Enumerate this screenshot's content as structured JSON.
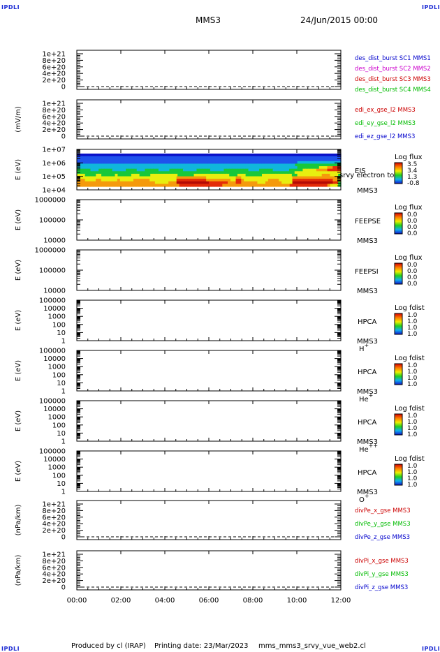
{
  "header": {
    "mission": "MMS3",
    "datetime": "24/Jun/2015 00:00",
    "logo": "IPDLI"
  },
  "footer": {
    "produced_by": "Produced by cl (IRAP)",
    "printing_date": "Printing date: 23/Mar/2023",
    "file_name": "mms_mms3_srvy_vue_web2.cl"
  },
  "colors": {
    "mms1": "#0000cc",
    "mms2": "#cc00cc",
    "mms3": "#cc0000",
    "mms4": "#00bb00",
    "x": "#cc0000",
    "y": "#00bb00",
    "z": "#0000cc"
  },
  "chart_data": [
    {
      "type": "line",
      "panel": "des-dist",
      "ylabel": "",
      "yticks": [
        "1e+21",
        "8e+20",
        "6e+20",
        "4e+20",
        "2e+20",
        "0"
      ],
      "ylim": [
        0,
        1e+21
      ],
      "dashed_zero": true,
      "legend": [
        {
          "text": "des_dist_burst SC1 MMS1",
          "color": "#0000cc"
        },
        {
          "text": "des_dist_burst SC2 MMS2",
          "color": "#cc00cc"
        },
        {
          "text": "des_dist_burst SC3 MMS3",
          "color": "#cc0000"
        },
        {
          "text": "des_dist_burst SC4 MMS4",
          "color": "#00bb00"
        }
      ]
    },
    {
      "type": "line",
      "panel": "edi",
      "ylabel": "(mV/m)",
      "yticks": [
        "1e+21",
        "8e+20",
        "6e+20",
        "4e+20",
        "2e+20",
        "0"
      ],
      "ylim": [
        0,
        1e+21
      ],
      "dashed_zero": true,
      "legend": [
        {
          "text": "edi_ex_gse_l2 MMS3",
          "color": "#cc0000"
        },
        {
          "text": "edi_ey_gse_l2 MMS3",
          "color": "#00bb00"
        },
        {
          "text": "edi_ez_gse_l2 MMS3",
          "color": "#0000cc"
        }
      ]
    },
    {
      "type": "heatmap",
      "panel": "eis",
      "ylabel": "E (eV)",
      "yticks": [
        "1e+07",
        "1e+06",
        "1e+05",
        "1e+04"
      ],
      "ylim": [
        10000.0,
        10000000.0
      ],
      "yscale": "log",
      "instrument": "EIS",
      "spacecraft": "MMS3",
      "overlay_text": "srvy electron to",
      "colorbar": {
        "title": "Log flux",
        "values": [
          "3.5",
          "3.4",
          "1.3",
          "-0.8"
        ]
      },
      "rows_top_to_bottom": [
        "BBBBBBBBBBBBBBBBBBBBBBBBBBBBBBBBBBBBBBBBBBBBBBBBBBBBBBBBBBBBBBBBBBBBBBBBBBBBBBBBBBBBBBBBBBBBBBBB",
        "bbbbbbbbbbbbbbbbbbbbbbbbbbbbbbbbbbbbbbbbbbbbbbbbbbbbbbbbbbbbbbbbbbbbbbbbbbbbbbbbbbbbbbbbbbbbbbbb",
        "bbbbbbbbbbbbbbbbbbbbbbbbbbbbbbbbbbbbbbbbbbbbbbbbbbbbbbbbbbbbbbbbbbbbbbbbbbbbbbbbbbbbbbbbbbbbbbbb",
        "bbbbbbbbbbbbbbbbbbbbbbbbbbbbbbbbbbbbbbbbbbbbbbbbbbbbbbbbbbbbbbbbbbbbbbbbbbbbbbbbbcccccccccccccccc",
        "cccccccccccccccccccccccccccccccccccccccccccccccccccccccccccccccccccccccccccccccccggggggggggggggggg",
        "cccccccccccccccccccccccccccccccccccccccccccccccccccccccccccccccccccccccccccccccccggggggggyyyoorrr",
        "gggggcccgggggcccccggggcccgggggccccgggggcccccgggggcccccgggggggggccccgggggccccccgggggyyyyyoooorrrrr",
        "ggggggggggggggggggggggggggggggggggggggggggggggggggggggggggggggggggggggggggggggggyyyyyyyyyyyyyyyyy",
        "yyyggggyygggggygggggyyyggggyyyyyyyyyyggggggyyyyyyyyyyyyygggyyyggggggyyyyyyyyyyyggyyyyyyyyyoooyyyg",
        "yyyyyyyyyyyyyyyyyyyyyyyyyyyyyyyyyyyyyoooooooooooyyyyyyyyyyyooyyyyyyyyyyyyyyyyyyyoooooooooooooooooy",
        "oooyyyyooyyyyyyoyyyyyooooooyyyyyyyyyyrrrrrrrrrrroooooooooyyrroyyyyyyyyyooooyyyyyrrrrrrrrrrrrrrrooy",
        "oooooooooooooooooooooooooooooyyyyyoooRRRRRRRRRRRRrrrrrrrooorrooooooyyyooooooyyyyRRRRRRRRRRRRRRRrrg",
        "oooooooooooooooooooooooooooooooooooooorrrrrrrrrrrrrrrrooooooooooooooooooooooooorrrrrrrrrrrrrroyyyg"
      ]
    },
    {
      "type": "heatmap",
      "panel": "feepse",
      "ylabel": "E (eV)",
      "yticks": [
        "1000000",
        "100000",
        "10000"
      ],
      "ylim": [
        10000,
        1000000
      ],
      "yscale": "log",
      "instrument": "FEEPSE",
      "spacecraft": "MMS3",
      "colorbar": {
        "title": "Log flux",
        "values": [
          "0.0",
          "0.0",
          "0.0",
          "0.0"
        ]
      }
    },
    {
      "type": "heatmap",
      "panel": "feepsi",
      "ylabel": "E (eV)",
      "yticks": [
        "1000000",
        "100000",
        "10000"
      ],
      "ylim": [
        10000,
        1000000
      ],
      "yscale": "log",
      "instrument": "FEEPSI",
      "spacecraft": "MMS3",
      "colorbar": {
        "title": "Log flux",
        "values": [
          "0.0",
          "0.0",
          "0.0",
          "0.0"
        ]
      }
    },
    {
      "type": "heatmap",
      "panel": "hpca-h",
      "ylabel": "E (eV)",
      "yticks": [
        "100000",
        "10000",
        "1000",
        "100",
        "10",
        "1"
      ],
      "ylim": [
        1,
        100000
      ],
      "yscale": "log",
      "instrument": "HPCA",
      "spacecraft": "MMS3",
      "species": "H",
      "charge": "+",
      "colorbar": {
        "title": "Log fdist",
        "values": [
          "1.0",
          "1.0",
          "1.0",
          "1.0"
        ]
      }
    },
    {
      "type": "heatmap",
      "panel": "hpca-he",
      "ylabel": "E (eV)",
      "yticks": [
        "100000",
        "10000",
        "1000",
        "100",
        "10",
        "1"
      ],
      "ylim": [
        1,
        100000
      ],
      "yscale": "log",
      "instrument": "HPCA",
      "spacecraft": "MMS3",
      "species": "He",
      "charge": "+",
      "colorbar": {
        "title": "Log fdist",
        "values": [
          "1.0",
          "1.0",
          "1.0",
          "1.0"
        ]
      }
    },
    {
      "type": "heatmap",
      "panel": "hpca-he2",
      "ylabel": "E (eV)",
      "yticks": [
        "100000",
        "10000",
        "1000",
        "100",
        "10",
        "1"
      ],
      "ylim": [
        1,
        100000
      ],
      "yscale": "log",
      "instrument": "HPCA",
      "spacecraft": "MMS3",
      "species": "He",
      "charge": "++",
      "colorbar": {
        "title": "Log fdist",
        "values": [
          "1.0",
          "1.0",
          "1.0",
          "1.0"
        ]
      }
    },
    {
      "type": "heatmap",
      "panel": "hpca-o",
      "ylabel": "E (eV)",
      "yticks": [
        "100000",
        "10000",
        "1000",
        "100",
        "10",
        "1"
      ],
      "ylim": [
        1,
        100000
      ],
      "yscale": "log",
      "instrument": "HPCA",
      "spacecraft": "MMS3",
      "species": "O",
      "charge": "+",
      "colorbar": {
        "title": "Log fdist",
        "values": [
          "1.0",
          "1.0",
          "1.0",
          "1.0"
        ]
      }
    },
    {
      "type": "line",
      "panel": "divpe",
      "ylabel": "(nPa/km)",
      "yticks": [
        "1e+21",
        "8e+20",
        "6e+20",
        "4e+20",
        "2e+20",
        "0"
      ],
      "ylim": [
        0,
        1e+21
      ],
      "dashed_zero": true,
      "legend": [
        {
          "text": "divPe_x_gse MMS3",
          "color": "#cc0000"
        },
        {
          "text": "divPe_y_gse MMS3",
          "color": "#00bb00"
        },
        {
          "text": "divPe_z_gse MMS3",
          "color": "#0000cc"
        }
      ]
    },
    {
      "type": "line",
      "panel": "divpi",
      "ylabel": "(nPa/km)",
      "yticks": [
        "1e+21",
        "8e+20",
        "6e+20",
        "4e+20",
        "2e+20",
        "0"
      ],
      "ylim": [
        0,
        1e+21
      ],
      "dashed_zero": true,
      "xticks": [
        "00:00",
        "02:00",
        "04:00",
        "06:00",
        "08:00",
        "10:00",
        "12:00"
      ],
      "legend": [
        {
          "text": "divPi_x_gse MMS3",
          "color": "#cc0000"
        },
        {
          "text": "divPi_y_gse MMS3",
          "color": "#00bb00"
        },
        {
          "text": "divPi_z_gse MMS3",
          "color": "#0000cc"
        }
      ]
    }
  ]
}
